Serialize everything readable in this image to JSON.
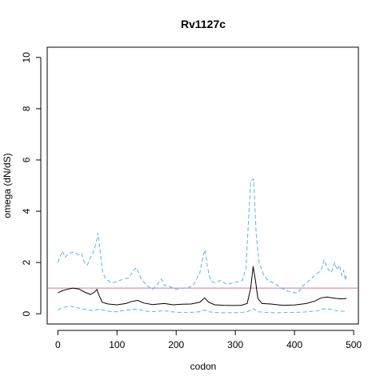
{
  "chart_data": {
    "type": "line",
    "title": "Rv1127c",
    "xlabel": "codon",
    "ylabel": "omega (dN/dS)",
    "xlim": [
      -18,
      508
    ],
    "ylim": [
      -0.4,
      10.4
    ],
    "xticks": [
      0,
      100,
      200,
      300,
      400,
      500
    ],
    "yticks": [
      0,
      2,
      4,
      6,
      8,
      10
    ],
    "grid": false,
    "reference_line": {
      "y": 1,
      "color": "#cc79a7"
    },
    "series": [
      {
        "style": "solid",
        "color": "#000000",
        "points": [
          [
            0,
            0.82
          ],
          [
            8,
            0.9
          ],
          [
            15,
            0.95
          ],
          [
            25,
            1.0
          ],
          [
            35,
            0.97
          ],
          [
            45,
            0.85
          ],
          [
            55,
            0.75
          ],
          [
            62,
            0.85
          ],
          [
            66,
            0.95
          ],
          [
            70,
            0.7
          ],
          [
            75,
            0.45
          ],
          [
            85,
            0.38
          ],
          [
            100,
            0.35
          ],
          [
            115,
            0.4
          ],
          [
            125,
            0.48
          ],
          [
            135,
            0.52
          ],
          [
            145,
            0.42
          ],
          [
            160,
            0.36
          ],
          [
            170,
            0.38
          ],
          [
            180,
            0.4
          ],
          [
            195,
            0.35
          ],
          [
            210,
            0.37
          ],
          [
            225,
            0.38
          ],
          [
            240,
            0.45
          ],
          [
            248,
            0.62
          ],
          [
            255,
            0.45
          ],
          [
            265,
            0.35
          ],
          [
            280,
            0.33
          ],
          [
            295,
            0.32
          ],
          [
            310,
            0.33
          ],
          [
            320,
            0.4
          ],
          [
            326,
            1.0
          ],
          [
            330,
            1.85
          ],
          [
            334,
            1.3
          ],
          [
            338,
            0.6
          ],
          [
            345,
            0.4
          ],
          [
            360,
            0.38
          ],
          [
            380,
            0.33
          ],
          [
            400,
            0.34
          ],
          [
            420,
            0.4
          ],
          [
            435,
            0.5
          ],
          [
            445,
            0.62
          ],
          [
            455,
            0.65
          ],
          [
            470,
            0.6
          ],
          [
            480,
            0.58
          ],
          [
            488,
            0.6
          ]
        ]
      },
      {
        "style": "dashed",
        "color": "#56b4e9",
        "points": [
          [
            0,
            2.0
          ],
          [
            5,
            2.3
          ],
          [
            8,
            2.45
          ],
          [
            12,
            2.2
          ],
          [
            18,
            2.35
          ],
          [
            25,
            2.4
          ],
          [
            35,
            2.3
          ],
          [
            40,
            2.35
          ],
          [
            45,
            2.0
          ],
          [
            50,
            1.9
          ],
          [
            55,
            2.2
          ],
          [
            60,
            2.4
          ],
          [
            65,
            2.8
          ],
          [
            68,
            3.15
          ],
          [
            72,
            2.3
          ],
          [
            76,
            1.6
          ],
          [
            80,
            1.4
          ],
          [
            90,
            1.2
          ],
          [
            100,
            1.25
          ],
          [
            110,
            1.35
          ],
          [
            120,
            1.4
          ],
          [
            128,
            1.7
          ],
          [
            133,
            1.8
          ],
          [
            140,
            1.4
          ],
          [
            150,
            1.1
          ],
          [
            160,
            0.95
          ],
          [
            170,
            1.2
          ],
          [
            175,
            1.35
          ],
          [
            180,
            1.1
          ],
          [
            190,
            1.05
          ],
          [
            200,
            0.95
          ],
          [
            210,
            1.0
          ],
          [
            220,
            1.0
          ],
          [
            230,
            1.15
          ],
          [
            240,
            1.6
          ],
          [
            246,
            2.3
          ],
          [
            249,
            2.5
          ],
          [
            253,
            1.8
          ],
          [
            258,
            1.3
          ],
          [
            265,
            1.2
          ],
          [
            275,
            1.3
          ],
          [
            285,
            1.15
          ],
          [
            295,
            1.2
          ],
          [
            305,
            1.25
          ],
          [
            312,
            1.3
          ],
          [
            318,
            1.8
          ],
          [
            322,
            3.5
          ],
          [
            326,
            5.2
          ],
          [
            331,
            5.25
          ],
          [
            335,
            3.2
          ],
          [
            340,
            2.0
          ],
          [
            348,
            1.5
          ],
          [
            355,
            1.3
          ],
          [
            365,
            1.2
          ],
          [
            375,
            1.05
          ],
          [
            385,
            0.9
          ],
          [
            395,
            0.85
          ],
          [
            405,
            0.8
          ],
          [
            415,
            1.1
          ],
          [
            425,
            1.3
          ],
          [
            435,
            1.5
          ],
          [
            445,
            1.7
          ],
          [
            450,
            2.1
          ],
          [
            455,
            1.8
          ],
          [
            462,
            1.6
          ],
          [
            468,
            2.0
          ],
          [
            472,
            1.7
          ],
          [
            476,
            1.9
          ],
          [
            480,
            1.5
          ],
          [
            483,
            1.7
          ],
          [
            486,
            1.3
          ],
          [
            488,
            1.5
          ]
        ]
      },
      {
        "style": "dashed",
        "color": "#56b4e9",
        "points": [
          [
            0,
            0.15
          ],
          [
            10,
            0.25
          ],
          [
            20,
            0.3
          ],
          [
            30,
            0.25
          ],
          [
            40,
            0.2
          ],
          [
            50,
            0.15
          ],
          [
            60,
            0.12
          ],
          [
            70,
            0.18
          ],
          [
            80,
            0.12
          ],
          [
            90,
            0.08
          ],
          [
            100,
            0.08
          ],
          [
            110,
            0.12
          ],
          [
            120,
            0.15
          ],
          [
            130,
            0.18
          ],
          [
            140,
            0.15
          ],
          [
            150,
            0.1
          ],
          [
            160,
            0.08
          ],
          [
            170,
            0.1
          ],
          [
            180,
            0.12
          ],
          [
            190,
            0.08
          ],
          [
            200,
            0.06
          ],
          [
            210,
            0.05
          ],
          [
            220,
            0.05
          ],
          [
            230,
            0.06
          ],
          [
            240,
            0.08
          ],
          [
            248,
            0.15
          ],
          [
            255,
            0.08
          ],
          [
            265,
            0.05
          ],
          [
            280,
            0.04
          ],
          [
            295,
            0.04
          ],
          [
            310,
            0.05
          ],
          [
            320,
            0.08
          ],
          [
            330,
            0.2
          ],
          [
            338,
            0.08
          ],
          [
            350,
            0.05
          ],
          [
            370,
            0.04
          ],
          [
            390,
            0.05
          ],
          [
            410,
            0.06
          ],
          [
            425,
            0.08
          ],
          [
            440,
            0.12
          ],
          [
            450,
            0.2
          ],
          [
            460,
            0.18
          ],
          [
            470,
            0.12
          ],
          [
            480,
            0.1
          ],
          [
            488,
            0.1
          ]
        ]
      }
    ]
  }
}
